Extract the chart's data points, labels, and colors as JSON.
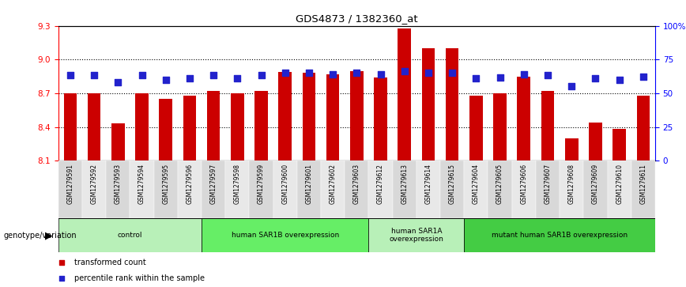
{
  "title": "GDS4873 / 1382360_at",
  "samples": [
    "GSM1279591",
    "GSM1279592",
    "GSM1279593",
    "GSM1279594",
    "GSM1279595",
    "GSM1279596",
    "GSM1279597",
    "GSM1279598",
    "GSM1279599",
    "GSM1279600",
    "GSM1279601",
    "GSM1279602",
    "GSM1279603",
    "GSM1279612",
    "GSM1279613",
    "GSM1279614",
    "GSM1279615",
    "GSM1279604",
    "GSM1279605",
    "GSM1279606",
    "GSM1279607",
    "GSM1279608",
    "GSM1279609",
    "GSM1279610",
    "GSM1279611"
  ],
  "bar_values": [
    8.7,
    8.7,
    8.43,
    8.7,
    8.65,
    8.68,
    8.72,
    8.7,
    8.72,
    8.89,
    8.88,
    8.87,
    8.9,
    8.84,
    9.28,
    9.1,
    9.1,
    8.68,
    8.7,
    8.85,
    8.72,
    8.3,
    8.44,
    8.38,
    8.68
  ],
  "dot_values": [
    8.86,
    8.86,
    8.8,
    8.86,
    8.82,
    8.83,
    8.86,
    8.83,
    8.86,
    8.88,
    8.88,
    8.87,
    8.88,
    8.87,
    8.9,
    8.88,
    8.88,
    8.83,
    8.84,
    8.87,
    8.86,
    8.76,
    8.83,
    8.82,
    8.85
  ],
  "bar_color": "#cc0000",
  "dot_color": "#2222cc",
  "ylim_left": [
    8.1,
    9.3
  ],
  "ylim_right": [
    0,
    100
  ],
  "yticks_left": [
    8.1,
    8.4,
    8.7,
    9.0,
    9.3
  ],
  "yticks_right": [
    0,
    25,
    50,
    75,
    100
  ],
  "ytick_labels_right": [
    "0",
    "25",
    "50",
    "75",
    "100%"
  ],
  "grid_values": [
    8.4,
    8.7,
    9.0
  ],
  "groups": [
    {
      "label": "control",
      "start": 0,
      "end": 5,
      "color": "#b8f0b8"
    },
    {
      "label": "human SAR1B overexpression",
      "start": 6,
      "end": 12,
      "color": "#66ee66"
    },
    {
      "label": "human SAR1A\noverexpression",
      "start": 13,
      "end": 16,
      "color": "#b8f0b8"
    },
    {
      "label": "mutant human SAR1B overexpression",
      "start": 17,
      "end": 24,
      "color": "#44cc44"
    }
  ],
  "genotype_label": "genotype/variation",
  "tick_bg_color": "#d0d0d0",
  "legend_items": [
    {
      "label": "transformed count",
      "color": "#cc0000"
    },
    {
      "label": "percentile rank within the sample",
      "color": "#2222cc"
    }
  ]
}
